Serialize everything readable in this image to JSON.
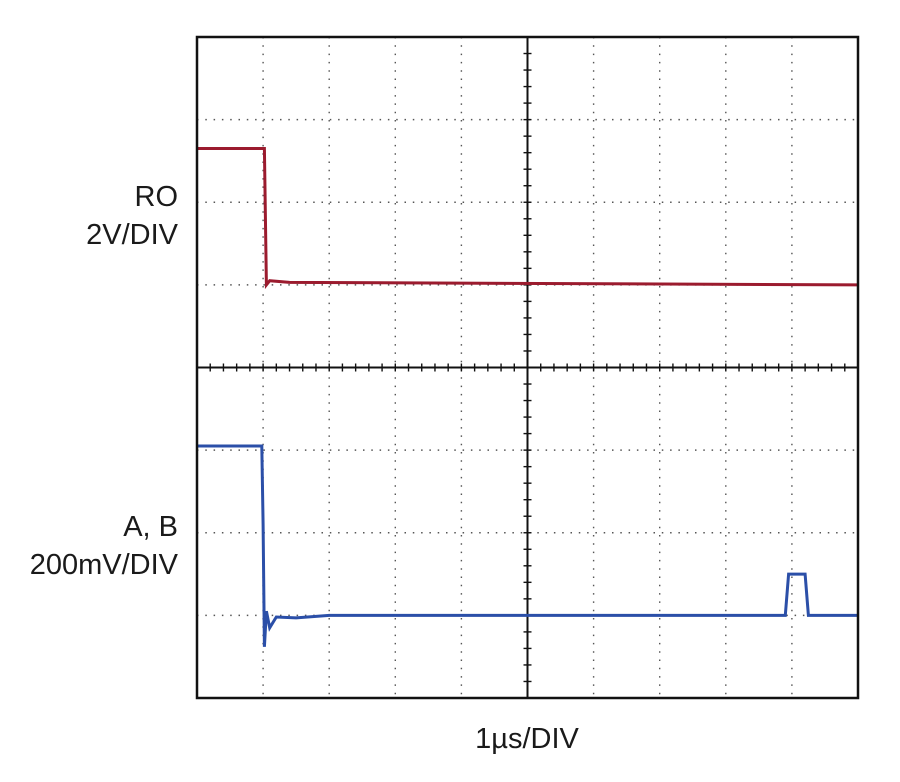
{
  "chart_data": {
    "type": "line",
    "title": "",
    "grid": true,
    "divisions": {
      "x": 10,
      "y": 8
    },
    "time_scale": "1µs/DIV",
    "x_range_div": [
      0,
      10
    ],
    "colors": {
      "ro": "#9b1b2e",
      "ab": "#2b4fa8",
      "grid": "#555555",
      "frame": "#111111"
    },
    "series": [
      {
        "name": "RO",
        "labels": [
          "RO",
          "2V/DIV"
        ],
        "points": [
          [
            0,
            6.65
          ],
          [
            1.02,
            6.65
          ],
          [
            1.05,
            5.0
          ],
          [
            1.1,
            5.05
          ],
          [
            1.4,
            5.03
          ],
          [
            10,
            5.0
          ]
        ]
      },
      {
        "name": "A, B",
        "labels": [
          "A, B",
          "200mV/DIV"
        ],
        "points": [
          [
            0,
            3.05
          ],
          [
            0.98,
            3.05
          ],
          [
            1.0,
            2.1
          ],
          [
            1.02,
            0.62
          ],
          [
            1.05,
            1.05
          ],
          [
            1.1,
            0.85
          ],
          [
            1.2,
            0.98
          ],
          [
            1.5,
            0.97
          ],
          [
            2,
            1.0
          ],
          [
            8.9,
            1.0
          ],
          [
            8.95,
            1.5
          ],
          [
            9.2,
            1.5
          ],
          [
            9.25,
            1.0
          ],
          [
            10,
            1.0
          ]
        ]
      }
    ]
  }
}
